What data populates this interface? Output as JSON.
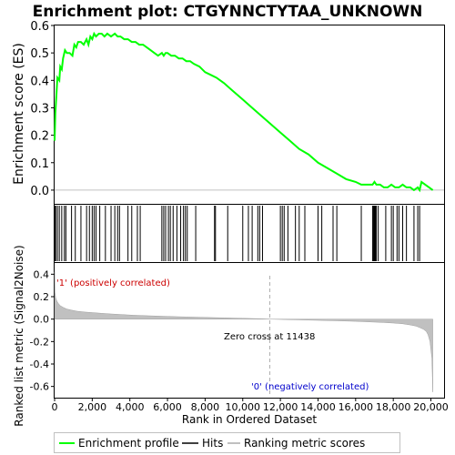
{
  "chart_data": {
    "type": "line",
    "title": "Enrichment plot: CTGYNNCTYTAA_UNKNOWN",
    "top_panel": {
      "ylabel": "Enrichment score (ES)",
      "ylim": [
        -0.05,
        0.6
      ],
      "yticks": [
        "0.0",
        "0.1",
        "0.2",
        "0.3",
        "0.4",
        "0.5",
        "0.6"
      ],
      "ytick_values": [
        0.0,
        0.1,
        0.2,
        0.3,
        0.4,
        0.5,
        0.6
      ],
      "series": [
        {
          "name": "Enrichment profile",
          "color": "#00ff00",
          "x": [
            0,
            40,
            80,
            150,
            250,
            300,
            380,
            450,
            550,
            650,
            800,
            950,
            1050,
            1150,
            1250,
            1400,
            1550,
            1700,
            1800,
            1900,
            2000,
            2100,
            2200,
            2350,
            2500,
            2650,
            2800,
            3000,
            3200,
            3350,
            3500,
            3700,
            3900,
            4100,
            4300,
            4500,
            4700,
            4900,
            5100,
            5300,
            5500,
            5700,
            5800,
            5900,
            6000,
            6200,
            6400,
            6600,
            6800,
            7000,
            7200,
            7400,
            7700,
            8000,
            8300,
            8600,
            9000,
            9500,
            10000,
            10500,
            11000,
            11500,
            12000,
            12500,
            13000,
            13500,
            14000,
            14500,
            15000,
            15500,
            16000,
            16300,
            16600,
            16900,
            17000,
            17100,
            17300,
            17500,
            17700,
            17900,
            18100,
            18300,
            18500,
            18700,
            18900,
            19100,
            19300,
            19400,
            19500,
            19700,
            19900,
            20100
          ],
          "y": [
            0.18,
            0.28,
            0.33,
            0.41,
            0.4,
            0.45,
            0.44,
            0.48,
            0.51,
            0.5,
            0.5,
            0.49,
            0.53,
            0.52,
            0.54,
            0.54,
            0.53,
            0.55,
            0.53,
            0.56,
            0.55,
            0.57,
            0.56,
            0.57,
            0.57,
            0.56,
            0.57,
            0.56,
            0.57,
            0.56,
            0.56,
            0.55,
            0.55,
            0.54,
            0.54,
            0.53,
            0.53,
            0.52,
            0.51,
            0.5,
            0.49,
            0.5,
            0.49,
            0.5,
            0.5,
            0.49,
            0.49,
            0.48,
            0.48,
            0.47,
            0.47,
            0.46,
            0.45,
            0.43,
            0.42,
            0.41,
            0.39,
            0.36,
            0.33,
            0.3,
            0.27,
            0.24,
            0.21,
            0.18,
            0.15,
            0.13,
            0.1,
            0.08,
            0.06,
            0.04,
            0.03,
            0.02,
            0.02,
            0.02,
            0.03,
            0.02,
            0.02,
            0.01,
            0.01,
            0.02,
            0.01,
            0.01,
            0.02,
            0.01,
            0.01,
            0.0,
            0.01,
            0.0,
            0.03,
            0.02,
            0.01,
            0.0
          ]
        }
      ]
    },
    "hits": {
      "name": "Hits",
      "x": [
        30,
        60,
        150,
        250,
        380,
        520,
        600,
        900,
        1100,
        1400,
        1700,
        1850,
        2000,
        2100,
        2200,
        2400,
        2700,
        3000,
        3200,
        3350,
        3450,
        3900,
        4100,
        4400,
        4550,
        5700,
        5800,
        5900,
        6050,
        6150,
        6300,
        6500,
        6700,
        6850,
        6950,
        7050,
        7500,
        8500,
        8550,
        9200,
        10000,
        10300,
        10500,
        10800,
        10900,
        11050,
        12000,
        12100,
        12200,
        12400,
        12800,
        13000,
        13300,
        14000,
        14200,
        14800,
        15000,
        16300,
        16900,
        16950,
        17000,
        17050,
        17100,
        17200,
        17600,
        17900,
        18000,
        18200,
        18300,
        18500,
        18700,
        19100,
        19300,
        19400
      ]
    },
    "bottom_panel": {
      "ylabel": "Ranked list metric (Signal2Noise)",
      "xlabel": "Rank in Ordered Dataset",
      "ylim": [
        -0.7,
        0.5
      ],
      "yticks": [
        "0.4",
        "0.2",
        "0.0",
        "-0.2",
        "-0.4",
        "-0.6"
      ],
      "ytick_values": [
        0.4,
        0.2,
        0.0,
        -0.2,
        -0.4,
        -0.6
      ],
      "xticks": [
        "0",
        "2,000",
        "4,000",
        "6,000",
        "8,000",
        "10,000",
        "12,000",
        "14,000",
        "16,000",
        "18,000",
        "20,000"
      ],
      "xtick_values": [
        0,
        2000,
        4000,
        6000,
        8000,
        10000,
        12000,
        14000,
        16000,
        18000,
        20000
      ],
      "xlim": [
        0,
        20700
      ],
      "n_genes": 20100,
      "zero_cross_rank": 11438,
      "metric_profile": {
        "x": [
          0,
          20,
          60,
          120,
          200,
          300,
          450,
          650,
          900,
          1200,
          1600,
          2000,
          2500,
          3000,
          3600,
          4200,
          5000,
          6000,
          7000,
          8000,
          9000,
          10000,
          11000,
          11438,
          12000,
          13000,
          14000,
          15000,
          16000,
          16800,
          17500,
          18000,
          18500,
          18900,
          19200,
          19400,
          19600,
          19750,
          19850,
          19950,
          20050,
          20100
        ],
        "y": [
          0.42,
          0.24,
          0.19,
          0.16,
          0.14,
          0.12,
          0.105,
          0.09,
          0.08,
          0.07,
          0.063,
          0.058,
          0.052,
          0.046,
          0.04,
          0.035,
          0.03,
          0.024,
          0.019,
          0.015,
          0.011,
          0.007,
          0.003,
          0.0,
          -0.003,
          -0.007,
          -0.011,
          -0.015,
          -0.02,
          -0.025,
          -0.03,
          -0.035,
          -0.042,
          -0.052,
          -0.062,
          -0.075,
          -0.09,
          -0.11,
          -0.14,
          -0.2,
          -0.35,
          -0.65
        ]
      },
      "annotations": {
        "positive": "'1' (positively correlated)",
        "negative": "'0' (negatively correlated)",
        "zero_cross": "Zero cross at 11438"
      }
    },
    "legend": {
      "placement": "bottom",
      "entries": [
        {
          "label": "Enrichment profile",
          "color": "#00ff00"
        },
        {
          "label": "Hits",
          "color": "#000000"
        },
        {
          "label": "Ranking metric scores",
          "color": "#c0c0c0"
        }
      ]
    },
    "colors": {
      "positive": "#ff0000",
      "neutral_positive": "#ffc0e0",
      "neutral_negative": "#d0d0ff",
      "negative": "#0000ff",
      "metric_fill": "#c0c0c0",
      "annotation_positive": "#cc0000",
      "annotation_negative": "#0000cc"
    }
  }
}
